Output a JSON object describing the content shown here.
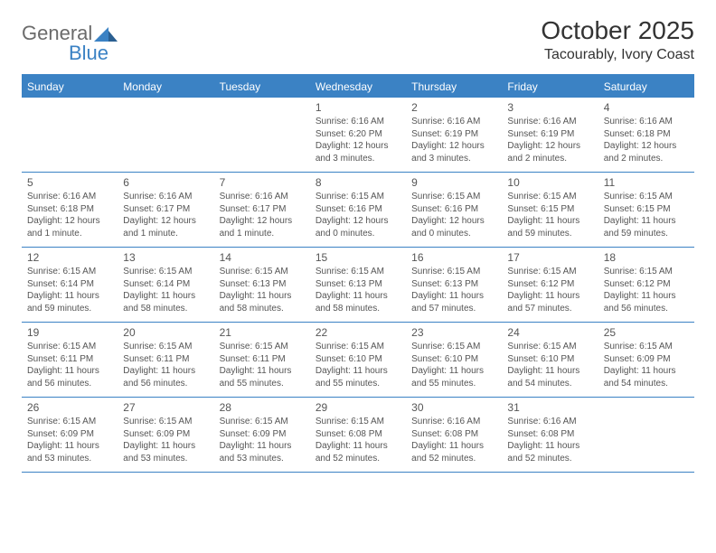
{
  "logo": {
    "general": "General",
    "blue": "Blue"
  },
  "title": "October 2025",
  "location": "Tacourably, Ivory Coast",
  "colors": {
    "accent": "#3b82c4",
    "text": "#555555",
    "title_text": "#333333",
    "logo_gray": "#6b6b6b",
    "background": "#ffffff"
  },
  "day_headers": [
    "Sunday",
    "Monday",
    "Tuesday",
    "Wednesday",
    "Thursday",
    "Friday",
    "Saturday"
  ],
  "weeks": [
    [
      {
        "day": "",
        "out": true
      },
      {
        "day": "",
        "out": true
      },
      {
        "day": "",
        "out": true
      },
      {
        "day": "1",
        "sunrise": "6:16 AM",
        "sunset": "6:20 PM",
        "daylight": "12 hours and 3 minutes."
      },
      {
        "day": "2",
        "sunrise": "6:16 AM",
        "sunset": "6:19 PM",
        "daylight": "12 hours and 3 minutes."
      },
      {
        "day": "3",
        "sunrise": "6:16 AM",
        "sunset": "6:19 PM",
        "daylight": "12 hours and 2 minutes."
      },
      {
        "day": "4",
        "sunrise": "6:16 AM",
        "sunset": "6:18 PM",
        "daylight": "12 hours and 2 minutes."
      }
    ],
    [
      {
        "day": "5",
        "sunrise": "6:16 AM",
        "sunset": "6:18 PM",
        "daylight": "12 hours and 1 minute."
      },
      {
        "day": "6",
        "sunrise": "6:16 AM",
        "sunset": "6:17 PM",
        "daylight": "12 hours and 1 minute."
      },
      {
        "day": "7",
        "sunrise": "6:16 AM",
        "sunset": "6:17 PM",
        "daylight": "12 hours and 1 minute."
      },
      {
        "day": "8",
        "sunrise": "6:15 AM",
        "sunset": "6:16 PM",
        "daylight": "12 hours and 0 minutes."
      },
      {
        "day": "9",
        "sunrise": "6:15 AM",
        "sunset": "6:16 PM",
        "daylight": "12 hours and 0 minutes."
      },
      {
        "day": "10",
        "sunrise": "6:15 AM",
        "sunset": "6:15 PM",
        "daylight": "11 hours and 59 minutes."
      },
      {
        "day": "11",
        "sunrise": "6:15 AM",
        "sunset": "6:15 PM",
        "daylight": "11 hours and 59 minutes."
      }
    ],
    [
      {
        "day": "12",
        "sunrise": "6:15 AM",
        "sunset": "6:14 PM",
        "daylight": "11 hours and 59 minutes."
      },
      {
        "day": "13",
        "sunrise": "6:15 AM",
        "sunset": "6:14 PM",
        "daylight": "11 hours and 58 minutes."
      },
      {
        "day": "14",
        "sunrise": "6:15 AM",
        "sunset": "6:13 PM",
        "daylight": "11 hours and 58 minutes."
      },
      {
        "day": "15",
        "sunrise": "6:15 AM",
        "sunset": "6:13 PM",
        "daylight": "11 hours and 58 minutes."
      },
      {
        "day": "16",
        "sunrise": "6:15 AM",
        "sunset": "6:13 PM",
        "daylight": "11 hours and 57 minutes."
      },
      {
        "day": "17",
        "sunrise": "6:15 AM",
        "sunset": "6:12 PM",
        "daylight": "11 hours and 57 minutes."
      },
      {
        "day": "18",
        "sunrise": "6:15 AM",
        "sunset": "6:12 PM",
        "daylight": "11 hours and 56 minutes."
      }
    ],
    [
      {
        "day": "19",
        "sunrise": "6:15 AM",
        "sunset": "6:11 PM",
        "daylight": "11 hours and 56 minutes."
      },
      {
        "day": "20",
        "sunrise": "6:15 AM",
        "sunset": "6:11 PM",
        "daylight": "11 hours and 56 minutes."
      },
      {
        "day": "21",
        "sunrise": "6:15 AM",
        "sunset": "6:11 PM",
        "daylight": "11 hours and 55 minutes."
      },
      {
        "day": "22",
        "sunrise": "6:15 AM",
        "sunset": "6:10 PM",
        "daylight": "11 hours and 55 minutes."
      },
      {
        "day": "23",
        "sunrise": "6:15 AM",
        "sunset": "6:10 PM",
        "daylight": "11 hours and 55 minutes."
      },
      {
        "day": "24",
        "sunrise": "6:15 AM",
        "sunset": "6:10 PM",
        "daylight": "11 hours and 54 minutes."
      },
      {
        "day": "25",
        "sunrise": "6:15 AM",
        "sunset": "6:09 PM",
        "daylight": "11 hours and 54 minutes."
      }
    ],
    [
      {
        "day": "26",
        "sunrise": "6:15 AM",
        "sunset": "6:09 PM",
        "daylight": "11 hours and 53 minutes."
      },
      {
        "day": "27",
        "sunrise": "6:15 AM",
        "sunset": "6:09 PM",
        "daylight": "11 hours and 53 minutes."
      },
      {
        "day": "28",
        "sunrise": "6:15 AM",
        "sunset": "6:09 PM",
        "daylight": "11 hours and 53 minutes."
      },
      {
        "day": "29",
        "sunrise": "6:15 AM",
        "sunset": "6:08 PM",
        "daylight": "11 hours and 52 minutes."
      },
      {
        "day": "30",
        "sunrise": "6:16 AM",
        "sunset": "6:08 PM",
        "daylight": "11 hours and 52 minutes."
      },
      {
        "day": "31",
        "sunrise": "6:16 AM",
        "sunset": "6:08 PM",
        "daylight": "11 hours and 52 minutes."
      },
      {
        "day": "",
        "out": true
      }
    ]
  ],
  "labels": {
    "sunrise": "Sunrise:",
    "sunset": "Sunset:",
    "daylight": "Daylight:"
  }
}
